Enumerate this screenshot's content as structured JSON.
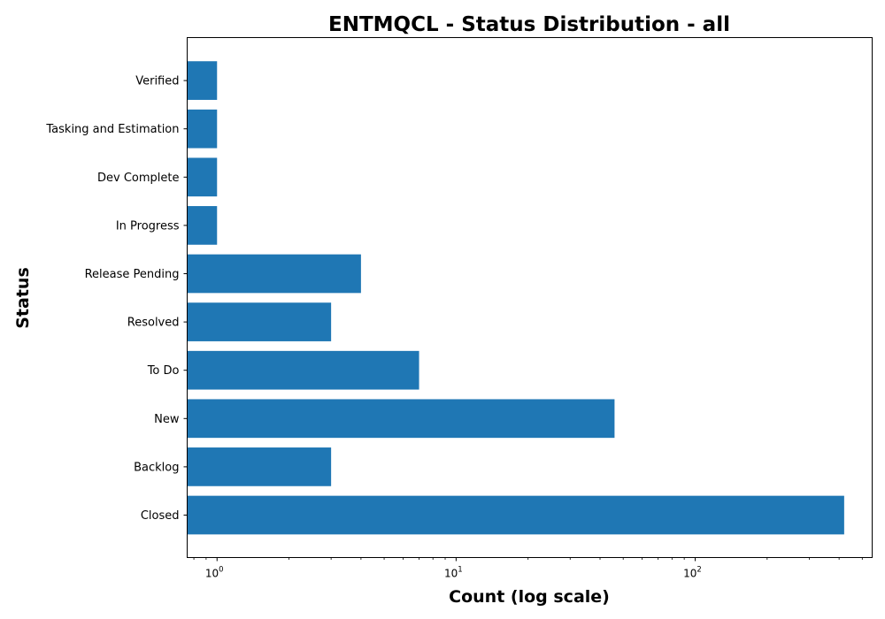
{
  "chart_data": {
    "type": "bar",
    "orientation": "horizontal",
    "title": "ENTMQCL - Status Distribution - all",
    "xlabel": "Count (log scale)",
    "ylabel": "Status",
    "x_scale": "log",
    "xlim": [
      0.75,
      550
    ],
    "grid": false,
    "bar_color": "#1f77b4",
    "categories": [
      "Closed",
      "Backlog",
      "New",
      "To Do",
      "Resolved",
      "Release Pending",
      "In Progress",
      "Dev Complete",
      "Tasking and Estimation",
      "Verified"
    ],
    "values": [
      420,
      3,
      46,
      7,
      3,
      4,
      1,
      1,
      1,
      1
    ],
    "x_ticks": [
      {
        "value": 1,
        "base": "10",
        "exp": "0"
      },
      {
        "value": 10,
        "base": "10",
        "exp": "1"
      },
      {
        "value": 100,
        "base": "10",
        "exp": "2"
      }
    ]
  }
}
